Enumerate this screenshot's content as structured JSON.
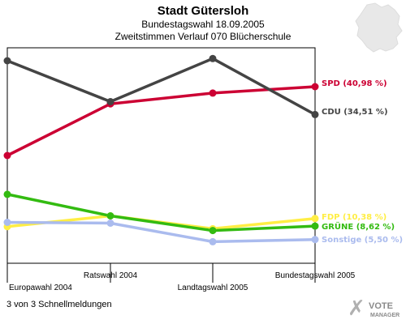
{
  "chart_data": {
    "type": "line",
    "title": "Stadt Gütersloh",
    "subtitle_1": "Bundestagswahl 18.09.2005",
    "subtitle_2": "Zweitstimmen Verlauf 070 Blücherschule",
    "xlabel": "",
    "ylabel": "",
    "categories": [
      "Europawahl 2004",
      "Ratswahl 2004",
      "Landtagswahl 2005",
      "Bundestagswahl 2005"
    ],
    "ylim": [
      0,
      50
    ],
    "grid": false,
    "series": [
      {
        "name": "SPD",
        "label": "SPD (40,98 %)",
        "color": "#cc0033",
        "values": [
          25,
          37,
          39.5,
          40.98
        ]
      },
      {
        "name": "CDU",
        "label": "CDU (34,51 %)",
        "color": "#444444",
        "values": [
          47,
          37.5,
          47.5,
          34.51
        ]
      },
      {
        "name": "FDP",
        "label": "FDP (10,38 %)",
        "color": "#ffee44",
        "values": [
          8.5,
          11,
          8,
          10.38
        ]
      },
      {
        "name": "GRÜNE",
        "label": "GRÜNE (8,62 %)",
        "color": "#33bb11",
        "values": [
          16,
          11,
          7.6,
          8.62
        ]
      },
      {
        "name": "Sonstige",
        "label": "Sonstige (5,50 %)",
        "color": "#aabbee",
        "values": [
          9.5,
          9.3,
          5,
          5.5
        ]
      }
    ]
  },
  "footer": {
    "news_link": "3 von 3 Schnellmeldungen"
  },
  "logo": {
    "line1": "VOTE",
    "line2": "MANAGER"
  },
  "map_icon": "germany-map-icon"
}
